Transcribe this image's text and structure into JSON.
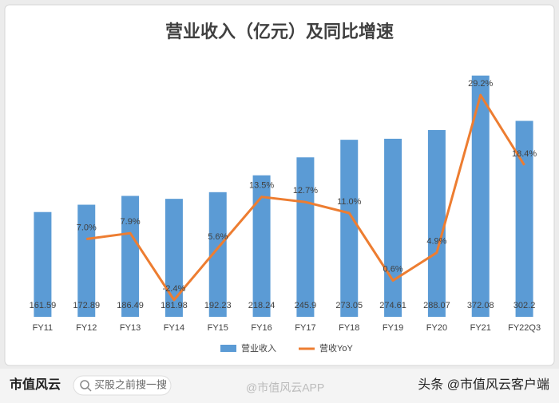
{
  "chart_data": {
    "type": "combo",
    "title": "营业收入（亿元）及同比增速",
    "categories": [
      "FY11",
      "FY12",
      "FY13",
      "FY14",
      "FY15",
      "FY16",
      "FY17",
      "FY18",
      "FY19",
      "FY20",
      "FY21",
      "FY22Q3"
    ],
    "series": [
      {
        "name": "营业收入",
        "type": "bar",
        "color": "#5b9bd5",
        "values": [
          161.59,
          172.89,
          186.49,
          181.98,
          192.23,
          218.24,
          245.9,
          273.05,
          274.61,
          288.07,
          372.08,
          302.2
        ]
      },
      {
        "name": "营收YoY",
        "type": "line",
        "axis": "y2",
        "color": "#ed7d31",
        "values": [
          null,
          7.0,
          7.9,
          -2.4,
          5.6,
          13.5,
          12.7,
          11.0,
          0.6,
          4.9,
          29.2,
          18.4
        ],
        "value_labels": [
          null,
          "7.0%",
          "7.9%",
          "-2.4%",
          "5.6%",
          "13.5%",
          "12.7%",
          "11.0%",
          "0.6%",
          "4.9%",
          "29.2%",
          "18.4%"
        ]
      }
    ],
    "ylim": [
      0,
      400
    ],
    "y2lim": [
      -5,
      35
    ],
    "legend": "bottom"
  },
  "footer": {
    "logo": "市值风云",
    "search": "买股之前搜一搜",
    "weibo": "@市值风云APP",
    "source": "头条 @市值风云客户端"
  }
}
